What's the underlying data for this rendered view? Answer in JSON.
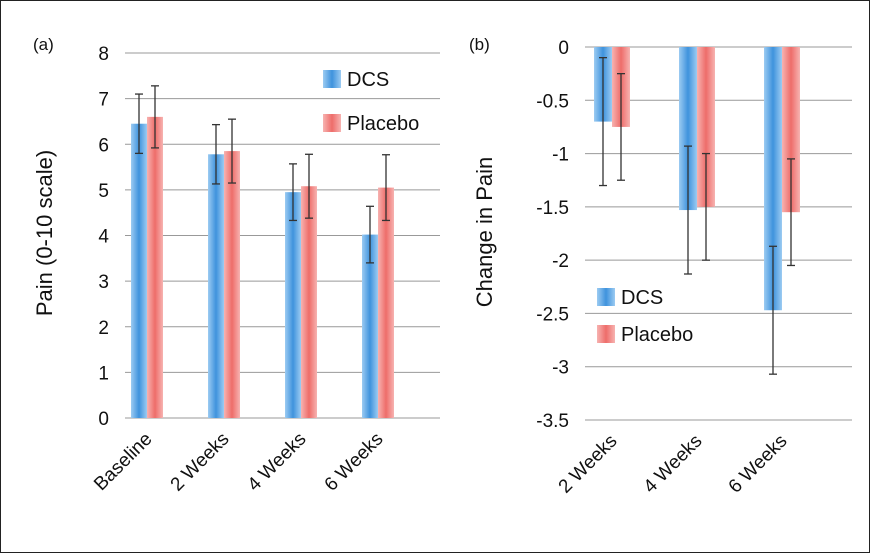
{
  "colors": {
    "dcs": "#4a9be0",
    "placebo": "#f07a78",
    "grid": "#999999",
    "error": "#333333"
  },
  "chart_data": [
    {
      "panel_label": "(a)",
      "type": "bar",
      "categories": [
        "Baseline",
        "2 Weeks",
        "4 Weeks",
        "6 Weeks"
      ],
      "ylabel": "Pain (0-10 scale)",
      "ylim": [
        0,
        8
      ],
      "yticks": [
        0,
        1,
        2,
        3,
        4,
        5,
        6,
        7,
        8
      ],
      "grid": true,
      "legend": "top-right",
      "series": [
        {
          "name": "DCS",
          "values": [
            6.45,
            5.78,
            4.95,
            4.02
          ],
          "error": [
            0.65,
            0.65,
            0.62,
            0.62
          ]
        },
        {
          "name": "Placebo",
          "values": [
            6.6,
            5.85,
            5.08,
            5.05
          ],
          "error": [
            0.68,
            0.7,
            0.7,
            0.72
          ]
        }
      ]
    },
    {
      "panel_label": "(b)",
      "type": "bar",
      "categories": [
        "2 Weeks",
        "4 Weeks",
        "6 Weeks"
      ],
      "ylabel": "Change in Pain",
      "ylim": [
        -3.5,
        0
      ],
      "yticks": [
        0,
        -0.5,
        -1,
        -1.5,
        -2,
        -2.5,
        -3,
        -3.5
      ],
      "grid": true,
      "legend": "bottom-left",
      "series": [
        {
          "name": "DCS",
          "values": [
            -0.7,
            -1.53,
            -2.47
          ],
          "error": [
            0.6,
            0.6,
            0.6
          ]
        },
        {
          "name": "Placebo",
          "values": [
            -0.75,
            -1.5,
            -1.55
          ],
          "error": [
            0.5,
            0.5,
            0.5
          ]
        }
      ]
    }
  ]
}
